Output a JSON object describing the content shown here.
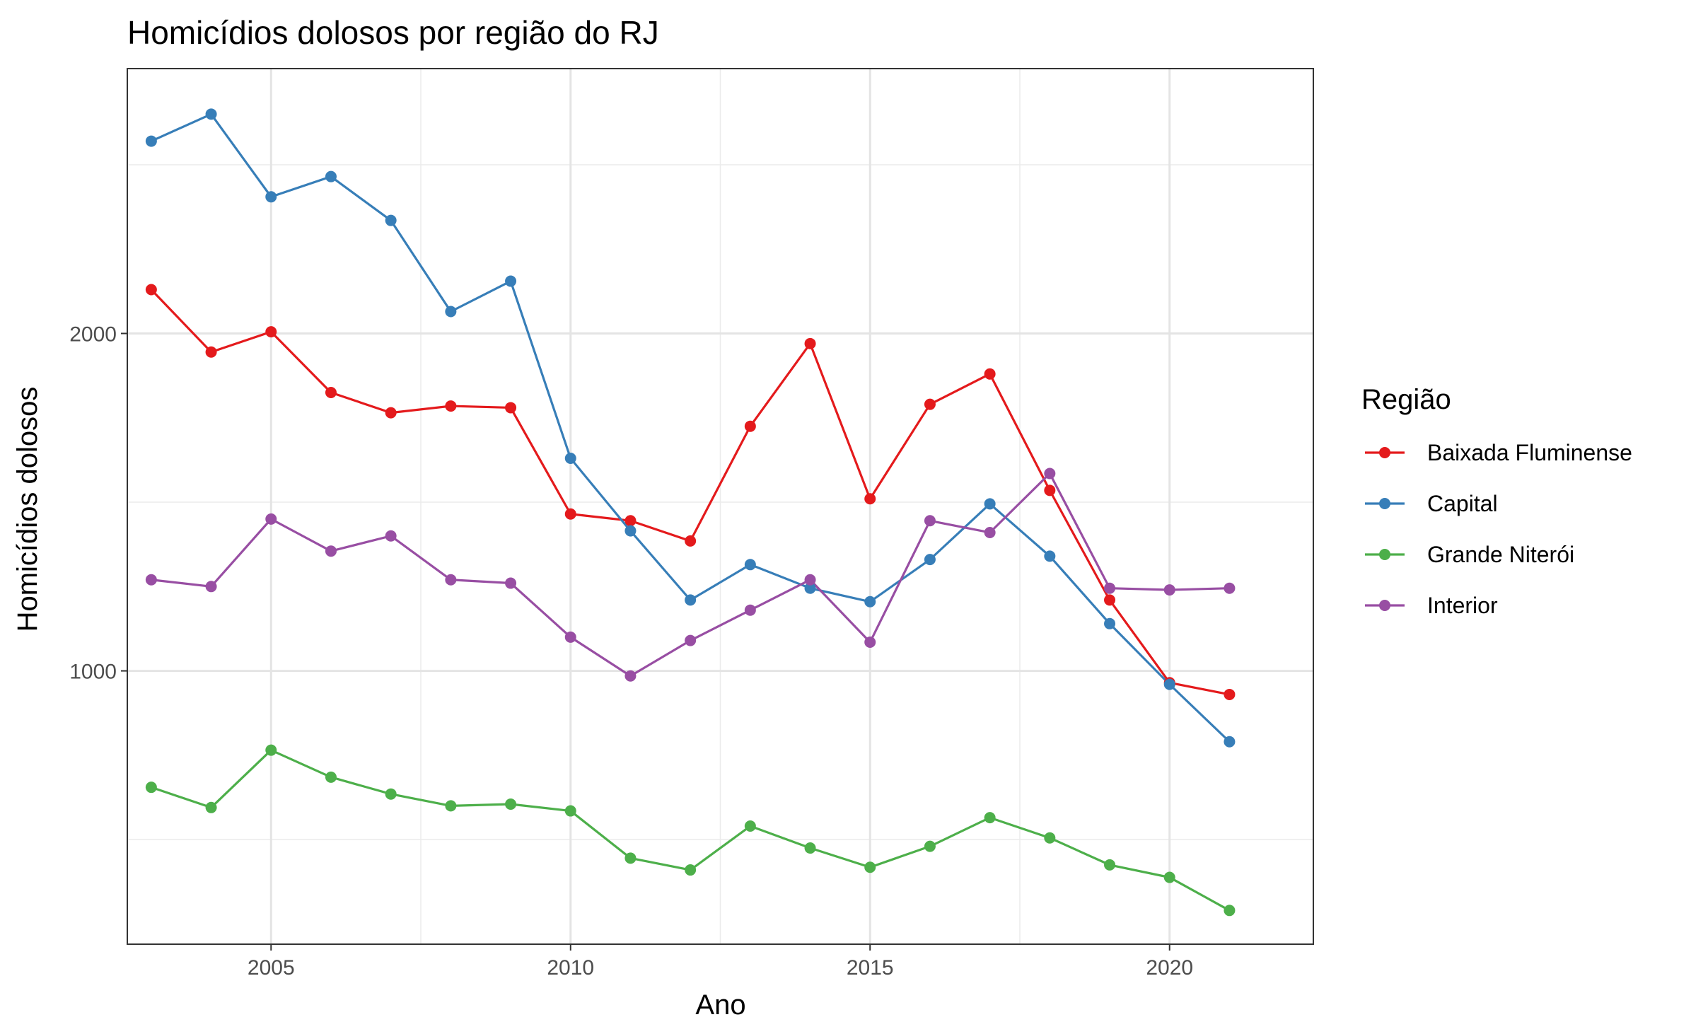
{
  "chart_data": {
    "type": "line",
    "title": "Homicídios dolosos por região do RJ",
    "xlabel": "Ano",
    "ylabel": "Homicídios dolosos",
    "x": [
      2003,
      2004,
      2005,
      2006,
      2007,
      2008,
      2009,
      2010,
      2011,
      2012,
      2013,
      2014,
      2015,
      2016,
      2017,
      2018,
      2019,
      2020,
      2021
    ],
    "xticks": [
      2005,
      2010,
      2015,
      2020
    ],
    "yticks": [
      1000,
      2000
    ],
    "xlim": [
      2002.6,
      2022.4
    ],
    "ylim": [
      190,
      2785
    ],
    "grid": true,
    "legend_title": "Região",
    "legend_position": "right",
    "series": [
      {
        "name": "Baixada Fluminense",
        "color": "#E41A1C",
        "values": [
          2130,
          1945,
          2005,
          1825,
          1765,
          1785,
          1780,
          1465,
          1445,
          1385,
          1725,
          1970,
          1510,
          1790,
          1880,
          1535,
          1210,
          965,
          930
        ]
      },
      {
        "name": "Capital",
        "color": "#377EB8",
        "values": [
          2570,
          2650,
          2405,
          2465,
          2335,
          2065,
          2155,
          1630,
          1415,
          1210,
          1315,
          1245,
          1205,
          1330,
          1495,
          1340,
          1140,
          960,
          790
        ]
      },
      {
        "name": "Grande Niterói",
        "color": "#4DAF4A",
        "values": [
          655,
          595,
          765,
          685,
          635,
          600,
          605,
          585,
          445,
          410,
          540,
          475,
          418,
          480,
          565,
          505,
          425,
          388,
          290
        ]
      },
      {
        "name": "Interior",
        "color": "#984EA3",
        "values": [
          1270,
          1250,
          1450,
          1355,
          1400,
          1270,
          1260,
          1100,
          985,
          1090,
          1180,
          1270,
          1085,
          1445,
          1410,
          1585,
          1245,
          1240,
          1245
        ]
      }
    ]
  }
}
